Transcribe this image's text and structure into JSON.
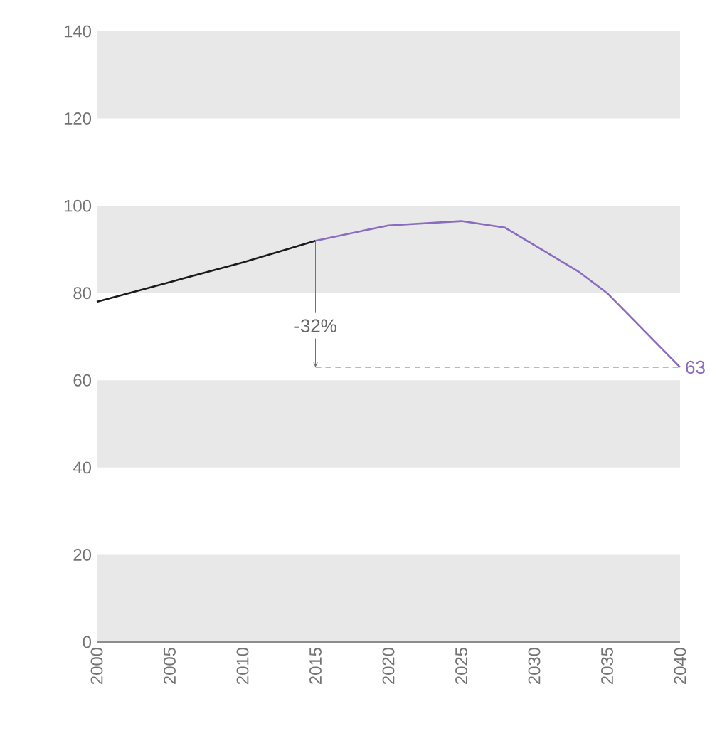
{
  "chart_data": {
    "type": "line",
    "series": [
      {
        "color": "#1a1a1a",
        "x": [
          2000,
          2005,
          2010,
          2015
        ],
        "values": [
          78,
          82.5,
          87,
          92
        ]
      },
      {
        "color": "#8a6bbf",
        "x": [
          2015,
          2020,
          2025,
          2028,
          2030,
          2033,
          2035,
          2040
        ],
        "values": [
          92,
          95.5,
          96.5,
          95,
          91,
          85,
          80,
          63
        ]
      }
    ],
    "xlim": [
      2000,
      2040
    ],
    "xticks": [
      2000,
      2005,
      2010,
      2015,
      2020,
      2025,
      2030,
      2035,
      2040
    ],
    "ylim": [
      0,
      140
    ],
    "yticks": [
      0,
      20,
      40,
      60,
      80,
      100,
      120,
      140
    ],
    "bands": [
      {
        "axis": "y",
        "from": 0,
        "to": 20,
        "color": "#e8e8e8"
      },
      {
        "axis": "y",
        "from": 40,
        "to": 60,
        "color": "#e8e8e8"
      },
      {
        "axis": "y",
        "from": 80,
        "to": 100,
        "color": "#e8e8e8"
      },
      {
        "axis": "y",
        "from": 120,
        "to": 140,
        "color": "#e8e8e8"
      }
    ],
    "annotations": [
      {
        "text": "-32%",
        "x": 2015,
        "y": 92
      },
      {
        "text": "63",
        "x": 2040,
        "y": 63
      }
    ],
    "grid": false,
    "marker": "none",
    "line_style": "solid"
  }
}
